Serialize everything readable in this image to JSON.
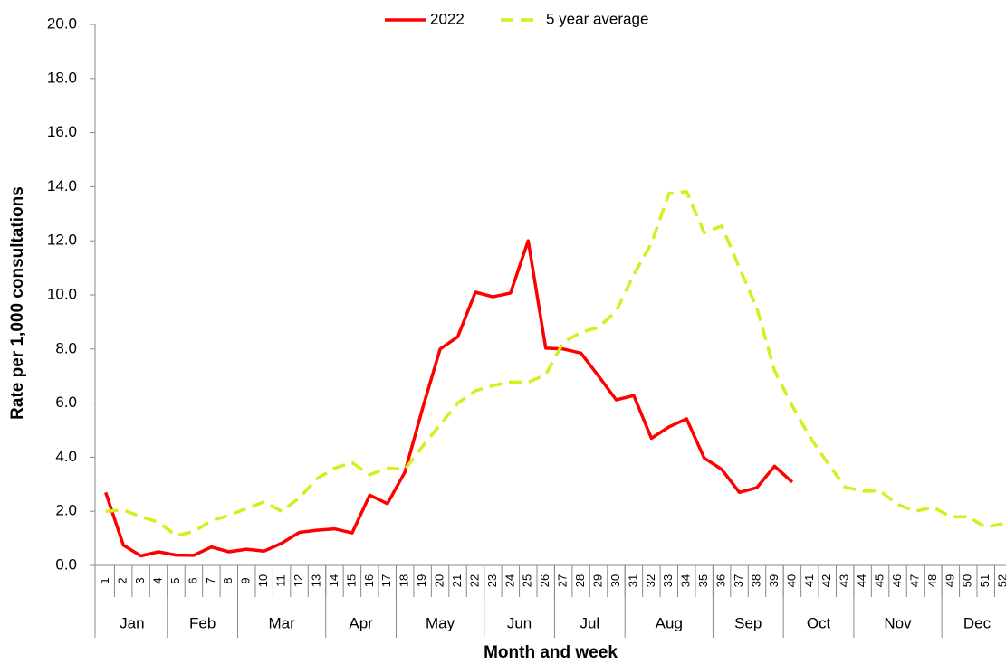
{
  "chart_data": {
    "type": "line",
    "y_label": "Rate per 1,000 consultations",
    "x_label": "Month and week",
    "categories": [
      "1",
      "2",
      "3",
      "4",
      "5",
      "6",
      "7",
      "8",
      "9",
      "10",
      "11",
      "12",
      "13",
      "14",
      "15",
      "16",
      "17",
      "18",
      "19",
      "20",
      "21",
      "22",
      "23",
      "24",
      "25",
      "26",
      "27",
      "28",
      "29",
      "30",
      "31",
      "32",
      "33",
      "34",
      "35",
      "36",
      "37",
      "38",
      "39",
      "40",
      "41",
      "42",
      "43",
      "44",
      "45",
      "46",
      "47",
      "48",
      "49",
      "50",
      "51",
      "52"
    ],
    "months": [
      {
        "label": "Jan",
        "span": 4
      },
      {
        "label": "Feb",
        "span": 4
      },
      {
        "label": "Mar",
        "span": 5
      },
      {
        "label": "Apr",
        "span": 4
      },
      {
        "label": "May",
        "span": 5
      },
      {
        "label": "Jun",
        "span": 4
      },
      {
        "label": "Jul",
        "span": 4
      },
      {
        "label": "Aug",
        "span": 5
      },
      {
        "label": "Sep",
        "span": 4
      },
      {
        "label": "Oct",
        "span": 4
      },
      {
        "label": "Nov",
        "span": 5
      },
      {
        "label": "Dec",
        "span": 4
      }
    ],
    "series": [
      {
        "name": "2022",
        "color": "#ff0000",
        "dashed": false,
        "values": [
          2.7,
          0.75,
          0.35,
          0.5,
          0.38,
          0.37,
          0.68,
          0.5,
          0.6,
          0.53,
          0.82,
          1.22,
          1.3,
          1.35,
          1.2,
          2.6,
          2.28,
          3.45,
          5.8,
          8.0,
          8.45,
          10.1,
          9.93,
          10.07,
          12.0,
          8.03,
          8.0,
          7.85,
          7.0,
          6.12,
          6.28,
          4.7,
          5.12,
          5.42,
          3.97,
          3.55,
          2.7,
          2.88,
          3.67,
          3.08,
          null,
          null,
          null,
          null,
          null,
          null,
          null,
          null,
          null,
          null,
          null,
          null
        ]
      },
      {
        "name": "5 year average",
        "color": "#d9ec1e",
        "dashed": true,
        "values": [
          2.0,
          2.05,
          1.8,
          1.6,
          1.1,
          1.25,
          1.65,
          1.85,
          2.1,
          2.35,
          2.0,
          2.5,
          3.2,
          3.6,
          3.8,
          3.35,
          3.6,
          3.55,
          4.4,
          5.2,
          6.0,
          6.45,
          6.65,
          6.78,
          6.77,
          7.05,
          8.25,
          8.62,
          8.8,
          9.4,
          10.75,
          11.9,
          13.75,
          13.82,
          12.3,
          12.55,
          11.0,
          9.5,
          7.2,
          5.9,
          4.75,
          3.8,
          2.9,
          2.75,
          2.75,
          2.25,
          2.0,
          2.15,
          1.8,
          1.8,
          1.4,
          1.55
        ]
      }
    ],
    "ylim": [
      0,
      20
    ],
    "yticks": [
      {
        "value": 0,
        "label": "0.0"
      },
      {
        "value": 2,
        "label": "2.0"
      },
      {
        "value": 4,
        "label": "4.0"
      },
      {
        "value": 6,
        "label": "6.0"
      },
      {
        "value": 8,
        "label": "8.0"
      },
      {
        "value": 10,
        "label": "10.0"
      },
      {
        "value": 12,
        "label": "12.0"
      },
      {
        "value": 14,
        "label": "14.0"
      },
      {
        "value": 16,
        "label": "16.0"
      },
      {
        "value": 18,
        "label": "18.0"
      },
      {
        "value": 20,
        "label": "20.0"
      }
    ],
    "legend": "top"
  }
}
